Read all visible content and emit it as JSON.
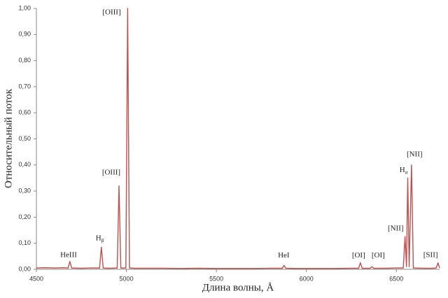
{
  "chart_data": {
    "type": "line",
    "x_label": "Длина волны, Å",
    "y_label": "Относительный поток",
    "color": "#c0504d",
    "grid": false,
    "xlim": [
      4500,
      6740
    ],
    "xticks": [
      4500,
      5000,
      5500,
      6000,
      6500
    ],
    "ylim": [
      0,
      1
    ],
    "yticks": [
      {
        "value": 0,
        "label": "0,00"
      },
      {
        "value": 0.1,
        "label": "0,10"
      },
      {
        "value": 0.2,
        "label": "0,20"
      },
      {
        "value": 0.3,
        "label": "0,30"
      },
      {
        "value": 0.4,
        "label": "0,40"
      },
      {
        "value": 0.5,
        "label": "0,50"
      },
      {
        "value": 0.6,
        "label": "0,60"
      },
      {
        "value": 0.7,
        "label": "0,70"
      },
      {
        "value": 0.8,
        "label": "0,80"
      },
      {
        "value": 0.9,
        "label": "0,90"
      },
      {
        "value": 1,
        "label": "1,00"
      }
    ],
    "x": [
      4500,
      4550,
      4600,
      4650,
      4676,
      4686,
      4696,
      4750,
      4800,
      4851,
      4861,
      4871,
      4900,
      4949,
      4959,
      4969,
      4997,
      5007,
      5017,
      5050,
      5100,
      5200,
      5300,
      5400,
      5500,
      5600,
      5700,
      5800,
      5866,
      5876,
      5886,
      5950,
      6050,
      6150,
      6250,
      6290,
      6300,
      6310,
      6354,
      6364,
      6374,
      6450,
      6500,
      6538,
      6548,
      6556,
      6563,
      6571,
      6584,
      6594,
      6650,
      6700,
      6721,
      6731,
      6740
    ],
    "values": [
      0.005,
      0.006,
      0.005,
      0.006,
      0.005,
      0.03,
      0.005,
      0.004,
      0.005,
      0.005,
      0.085,
      0.005,
      0.004,
      0.005,
      0.32,
      0.005,
      0.005,
      1.0,
      0.005,
      0.004,
      0.004,
      0.004,
      0.003,
      0.004,
      0.003,
      0.003,
      0.003,
      0.004,
      0.004,
      0.015,
      0.004,
      0.003,
      0.003,
      0.003,
      0.004,
      0.004,
      0.025,
      0.004,
      0.004,
      0.01,
      0.004,
      0.004,
      0.005,
      0.005,
      0.125,
      0.01,
      0.35,
      0.01,
      0.4,
      0.005,
      0.004,
      0.004,
      0.005,
      0.025,
      0.005
    ],
    "annotations": [
      {
        "text": "HeIII",
        "x": 4679,
        "y": 0.054
      },
      {
        "text": "H",
        "sub": "β",
        "x": 4852,
        "y": 0.118
      },
      {
        "text": "[OIII]",
        "x": 4916,
        "y": 0.37
      },
      {
        "text": "[OIII]",
        "x": 4918,
        "y": 0.984
      },
      {
        "text": "HeI",
        "x": 5874,
        "y": 0.052
      },
      {
        "text": "[OI]",
        "x": 6290,
        "y": 0.052
      },
      {
        "text": "[OI]",
        "x": 6399,
        "y": 0.052
      },
      {
        "text": "[NII]",
        "x": 6496,
        "y": 0.155
      },
      {
        "text": "H",
        "sub": "α",
        "x": 6540,
        "y": 0.38
      },
      {
        "text": "[NII]",
        "x": 6601,
        "y": 0.44
      },
      {
        "text": "[SII]",
        "x": 6690,
        "y": 0.054
      }
    ]
  }
}
